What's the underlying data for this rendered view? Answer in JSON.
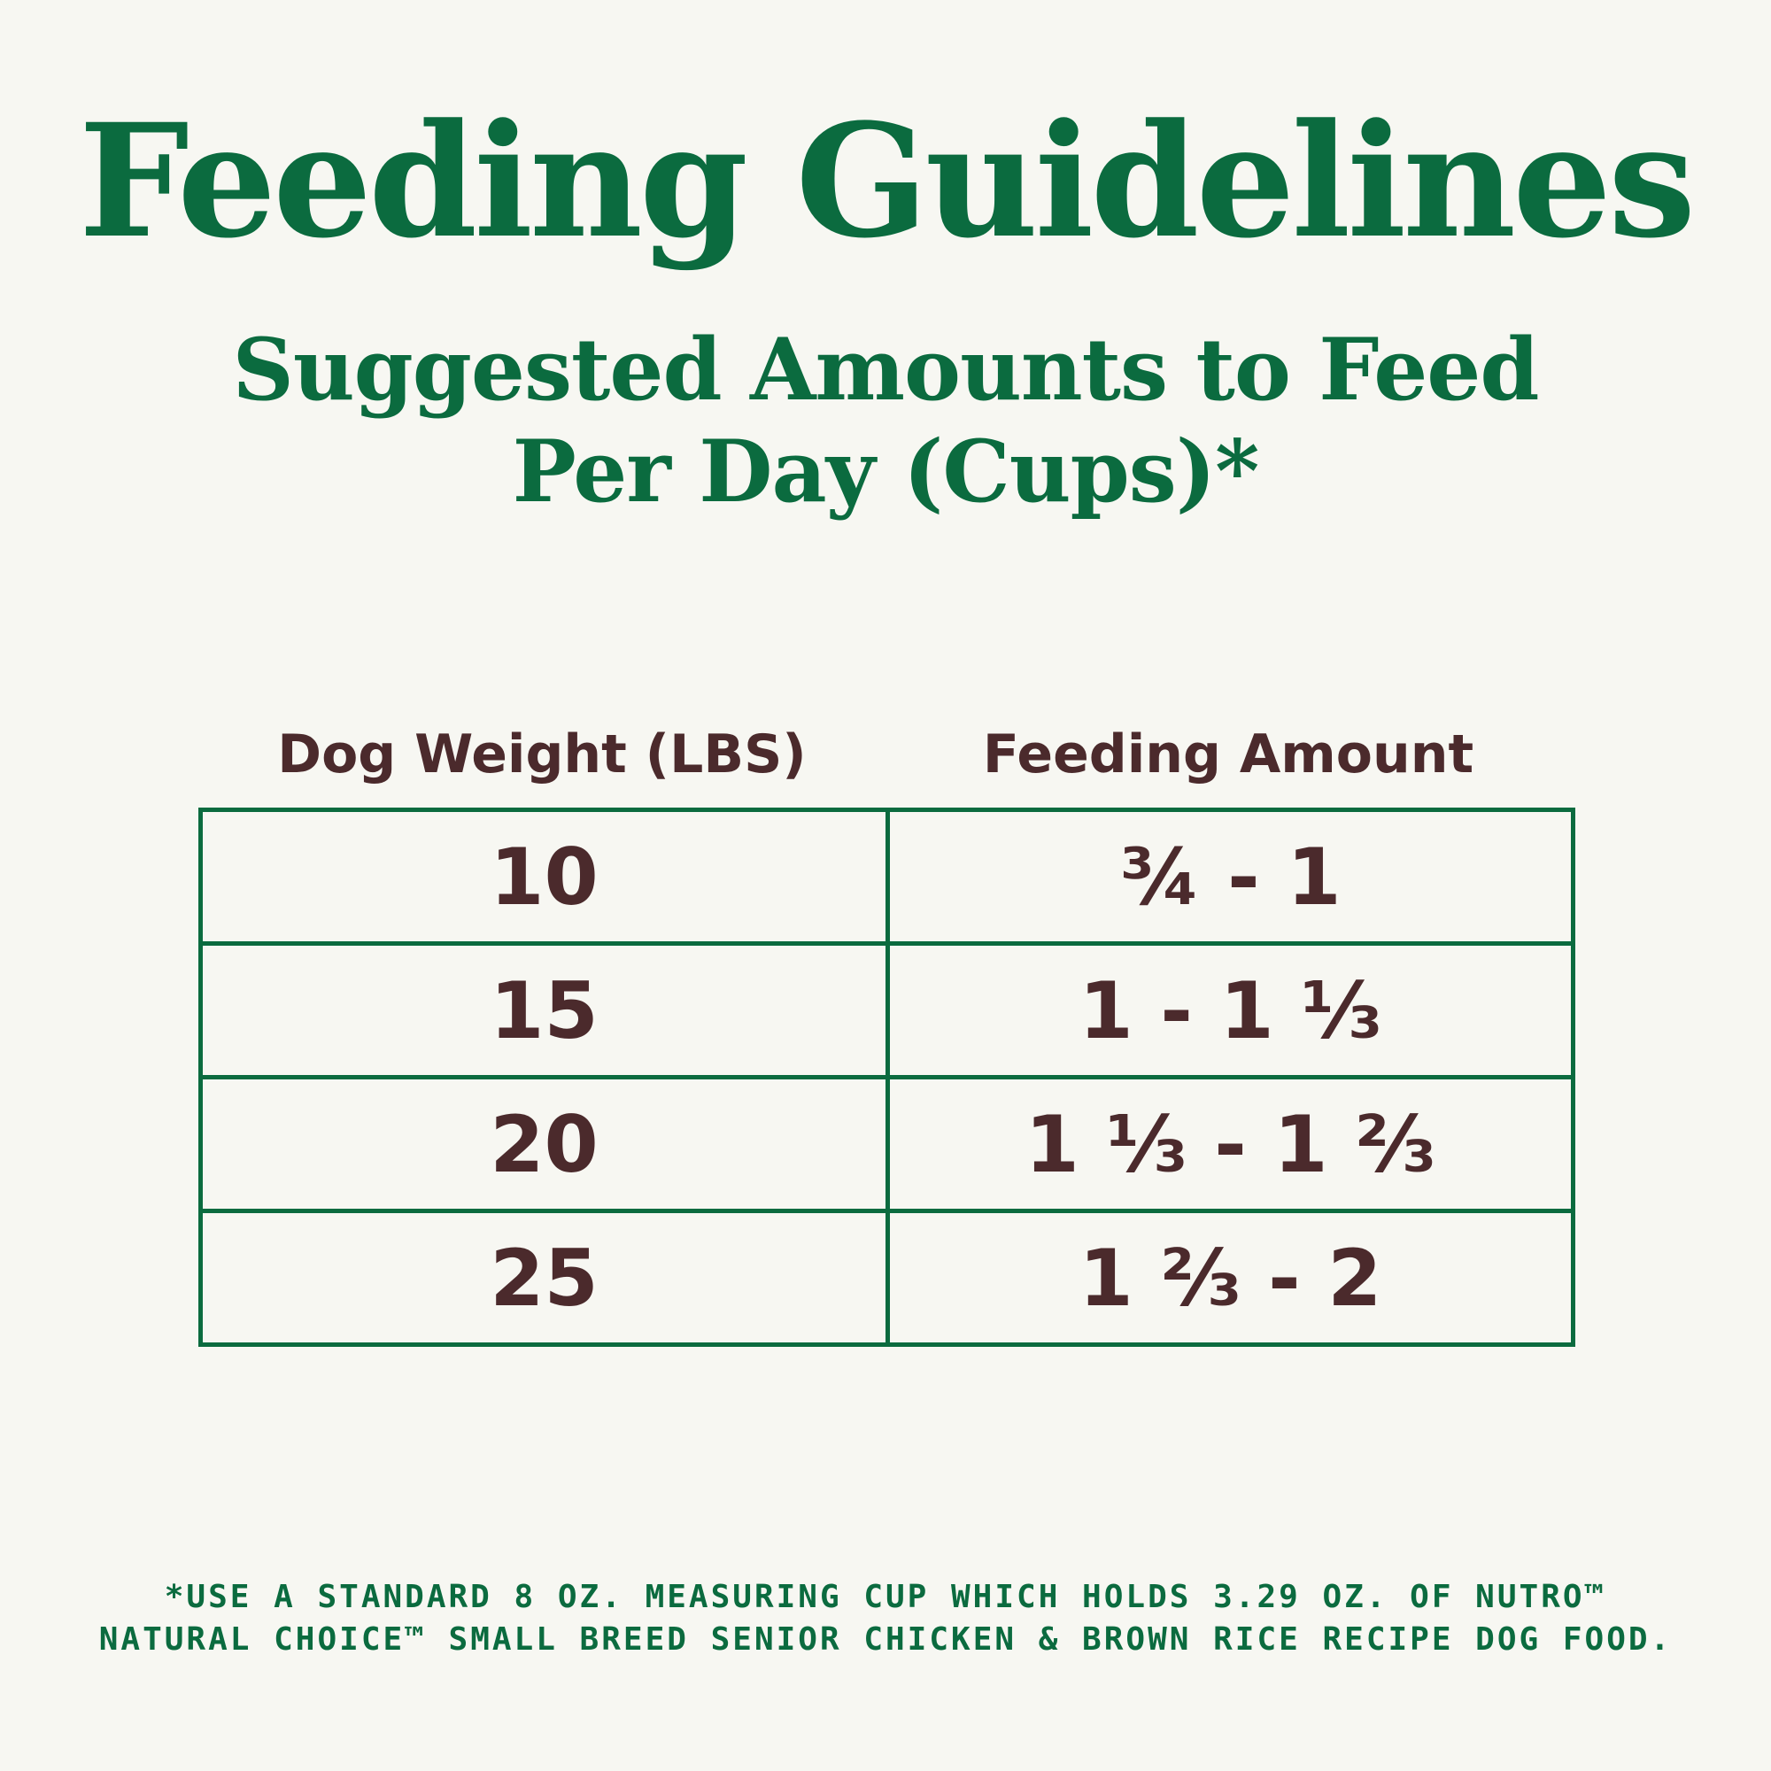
{
  "title": "Feeding Guidelines",
  "subtitle": {
    "line1": "Suggested Amounts to Feed",
    "line2": "Per Day (Cups)*"
  },
  "table": {
    "headers": {
      "weight": "Dog Weight (LBS)",
      "amount": "Feeding Amount"
    },
    "rows": [
      {
        "weight": "10",
        "amount": "¾ - 1"
      },
      {
        "weight": "15",
        "amount": "1 - 1 ⅓"
      },
      {
        "weight": "20",
        "amount": "1 ⅓ - 1 ⅔"
      },
      {
        "weight": "25",
        "amount": "1 ⅔ - 2"
      }
    ]
  },
  "footnote": {
    "line1": "*USE A STANDARD 8 OZ. MEASURING CUP WHICH HOLDS 3.29 OZ. OF NUTRO™",
    "line2": "NATURAL CHOICE™ SMALL BREED SENIOR CHICKEN & BROWN RICE RECIPE DOG FOOD."
  },
  "colors": {
    "background": "#f7f7f2",
    "green": "#0b6b3f",
    "brown": "#4b2a2c"
  }
}
